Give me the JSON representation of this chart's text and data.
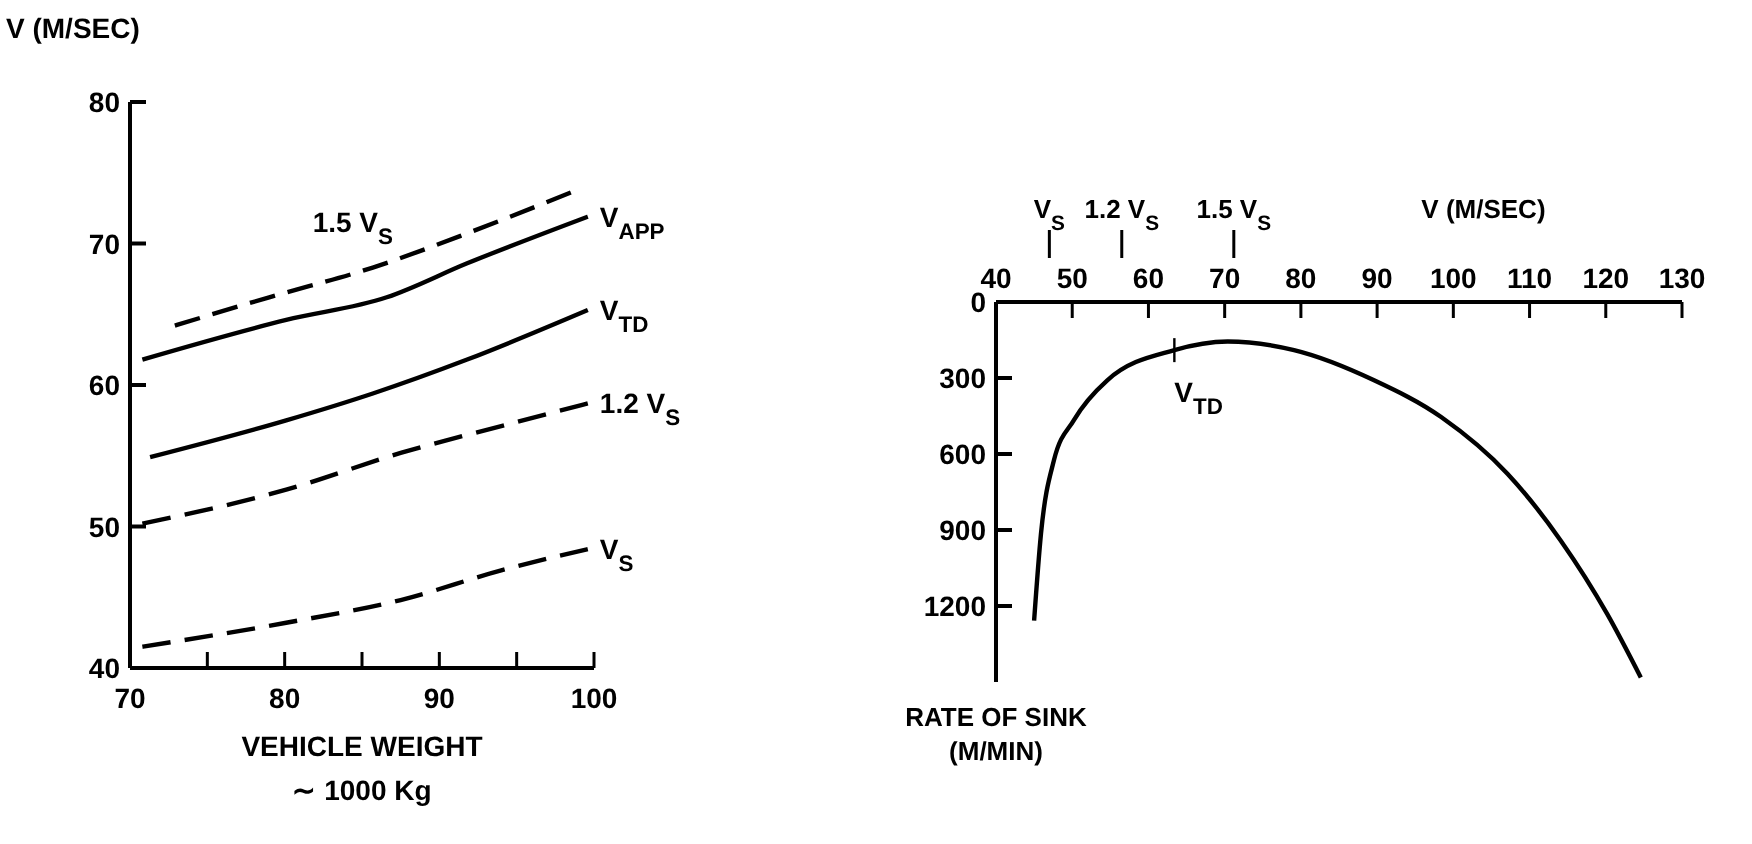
{
  "chart_data": [
    {
      "type": "line",
      "ylabel": "V (M/SEC)",
      "xlabel": "VEHICLE WEIGHT",
      "annotations": [
        "∼ 1000 Kg"
      ],
      "xlim": [
        70,
        100
      ],
      "ylim": [
        40,
        80
      ],
      "xticks": [
        70,
        {
          "value": 75,
          "label": null
        },
        80,
        {
          "value": 85,
          "label": null
        },
        90,
        {
          "value": 95,
          "label": null
        },
        100
      ],
      "yticks": [
        40,
        50,
        60,
        70,
        80
      ],
      "grid": false,
      "marker": "none",
      "series": [
        {
          "name": "1.5 V$_{S}$",
          "color": "#000000",
          "line_style": "dashed",
          "x": [
            72.9,
            79,
            85.7,
            92,
            98.5
          ],
          "values": [
            64.2,
            66.2,
            68.3,
            70.8,
            73.6
          ]
        },
        {
          "name": "V$_{APP}$",
          "color": "#000000",
          "line_style": "solid",
          "x": [
            70.8,
            80.1,
            86.6,
            91.8,
            99.6
          ],
          "values": [
            61.8,
            64.6,
            66.2,
            68.6,
            71.9
          ]
        },
        {
          "name": "V$_{TD}$",
          "color": "#000000",
          "line_style": "solid",
          "x": [
            71.3,
            80.1,
            85.7,
            91.8,
            99.6
          ],
          "values": [
            54.9,
            57.5,
            59.4,
            61.8,
            65.3
          ]
        },
        {
          "name": "1.2 V$_{S}$",
          "color": "#000000",
          "line_style": "dashed",
          "x": [
            70.8,
            80.1,
            87.5,
            94,
            99.6
          ],
          "values": [
            50.2,
            52.6,
            55.2,
            57.1,
            58.7
          ]
        },
        {
          "name": "V$_{S}$",
          "color": "#000000",
          "line_style": "dashed",
          "x": [
            70.8,
            80.1,
            87.5,
            94,
            99.6
          ],
          "values": [
            41.5,
            43.2,
            44.8,
            46.9,
            48.4
          ]
        }
      ]
    },
    {
      "type": "line",
      "xlabel": "V (M/SEC)",
      "ylabel": "RATE OF SINK (M/MIN)",
      "xlim": [
        40,
        130
      ],
      "ylim": [
        1500,
        0
      ],
      "xticks": [
        40,
        50,
        60,
        70,
        80,
        90,
        100,
        110,
        120,
        130
      ],
      "yticks": [
        0,
        300,
        600,
        900,
        1200
      ],
      "grid": false,
      "marker": "none",
      "line_style": "solid",
      "series": [
        {
          "color": "#000000",
          "x": [
            45.0,
            45.9,
            47.6,
            50.2,
            54.6,
            63.4,
            70.4,
            79.1,
            89.6,
            98.4,
            107.1,
            114.1,
            120.2,
            124.6
          ],
          "values": [
            1258,
            915,
            625,
            467,
            309,
            190,
            156,
            190,
            309,
            454,
            678,
            942,
            1232,
            1482
          ]
        }
      ],
      "ref_lines": [
        {
          "axis": "x",
          "value": 47,
          "label": "V$_{S}$"
        },
        {
          "axis": "x",
          "value": 56.5,
          "label": "1.2 V$_{S}$"
        },
        {
          "axis": "x",
          "value": 71.2,
          "label": "1.5 V$_{S}$"
        }
      ],
      "annotations": [
        {
          "text": "V$_{TD}$",
          "x": 63.4,
          "y": 190
        }
      ]
    }
  ]
}
